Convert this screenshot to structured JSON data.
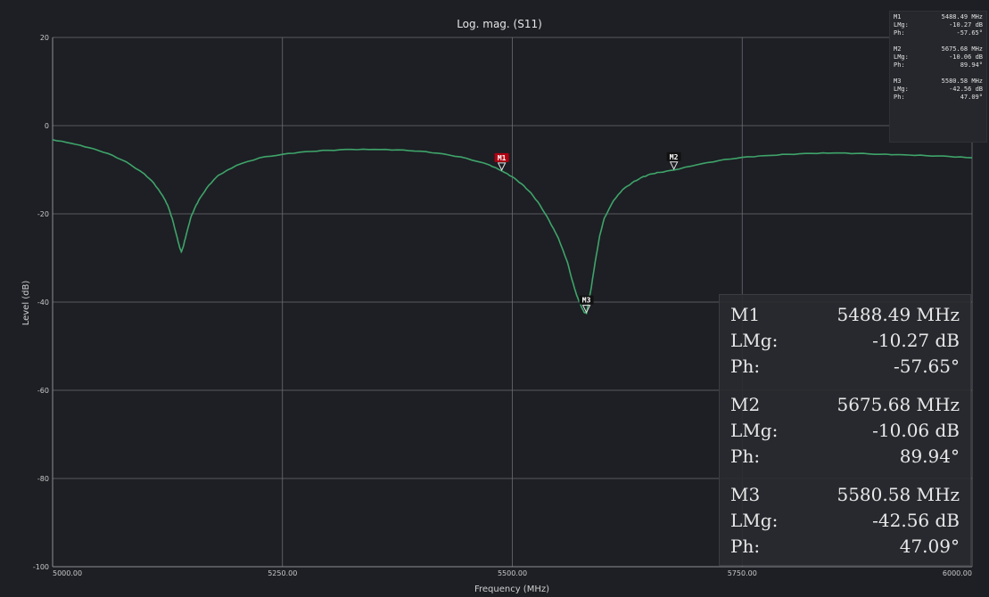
{
  "chart_data": {
    "type": "line",
    "title": "Log. mag. (S11)",
    "xlabel": "Frequency (MHz)",
    "ylabel": "Level (dB)",
    "xlim": [
      5000,
      6000
    ],
    "ylim": [
      -100,
      20
    ],
    "xticks": [
      "5000.00",
      "5250.00",
      "5500.00",
      "5750.00",
      "6000.00"
    ],
    "yticks": [
      "20",
      "0",
      "-20",
      "-40",
      "-60",
      "-80",
      "-100"
    ],
    "grid": true,
    "series": [
      {
        "color": "#3fa46a",
        "x": [
          5000,
          5020,
          5040,
          5060,
          5080,
          5100,
          5110,
          5120,
          5125,
          5130,
          5135,
          5138,
          5140,
          5142,
          5145,
          5150,
          5155,
          5160,
          5170,
          5180,
          5200,
          5225,
          5250,
          5275,
          5300,
          5325,
          5350,
          5375,
          5400,
          5425,
          5450,
          5475,
          5488.49,
          5500,
          5510,
          5520,
          5530,
          5540,
          5550,
          5560,
          5565,
          5570,
          5575,
          5578,
          5580.58,
          5583,
          5586,
          5590,
          5595,
          5600,
          5610,
          5620,
          5630,
          5640,
          5650,
          5660,
          5675.68,
          5700,
          5725,
          5750,
          5775,
          5800,
          5825,
          5850,
          5875,
          5900,
          5925,
          5950,
          5975,
          6000
        ],
        "y": [
          -3.2,
          -4.0,
          -5.0,
          -6.3,
          -8.2,
          -11.0,
          -13.0,
          -16.0,
          -18.0,
          -21.0,
          -25.0,
          -27.5,
          -28.6,
          -27.5,
          -25.0,
          -21.0,
          -18.5,
          -16.5,
          -13.5,
          -11.3,
          -9.0,
          -7.3,
          -6.5,
          -5.9,
          -5.6,
          -5.4,
          -5.4,
          -5.5,
          -5.8,
          -6.4,
          -7.4,
          -8.9,
          -10.27,
          -11.6,
          -13.2,
          -15.2,
          -18.0,
          -21.5,
          -25.5,
          -31.0,
          -35.0,
          -38.5,
          -41.0,
          -42.3,
          -42.56,
          -40.0,
          -36.5,
          -31.0,
          -25.0,
          -21.0,
          -17.0,
          -14.5,
          -13.0,
          -11.8,
          -11.0,
          -10.6,
          -10.06,
          -8.9,
          -7.9,
          -7.2,
          -6.8,
          -6.5,
          -6.3,
          -6.2,
          -6.3,
          -6.5,
          -6.6,
          -6.8,
          -7.0,
          -7.3
        ]
      }
    ],
    "markers": [
      {
        "name": "M1",
        "freq": 5488.49,
        "level": -10.27,
        "color": "#b00010"
      },
      {
        "name": "M2",
        "freq": 5675.68,
        "level": -10.06,
        "color": "#111111"
      },
      {
        "name": "M3",
        "freq": 5580.58,
        "level": -42.56,
        "color": "#111111"
      }
    ]
  },
  "readout": {
    "m1": {
      "name": "M1",
      "freq": "5488.49 MHz",
      "lmg_label": "LMg:",
      "lmg": "-10.27 dB",
      "ph_label": "Ph:",
      "ph": "-57.65°"
    },
    "m2": {
      "name": "M2",
      "freq": "5675.68 MHz",
      "lmg_label": "LMg:",
      "lmg": "-10.06 dB",
      "ph_label": "Ph:",
      "ph": "89.94°"
    },
    "m3": {
      "name": "M3",
      "freq": "5580.58 MHz",
      "lmg_label": "LMg:",
      "lmg": "-42.56 dB",
      "ph_label": "Ph:",
      "ph": "47.09°"
    }
  }
}
